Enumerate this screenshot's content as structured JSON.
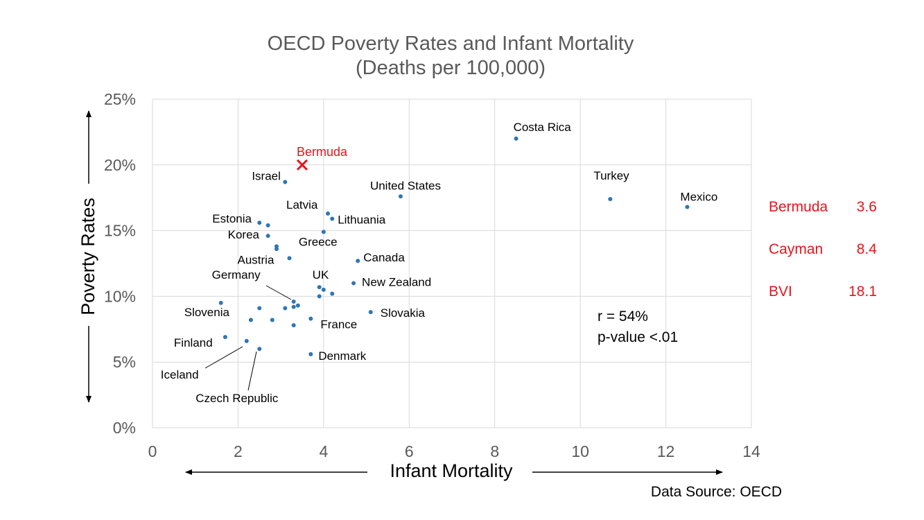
{
  "chart_data": {
    "type": "scatter",
    "title": "OECD Poverty Rates and Infant Mortality",
    "subtitle": "(Deaths per 100,000)",
    "xlabel": "Infant Mortality",
    "ylabel": "Poverty Rates",
    "xlim": [
      0,
      14
    ],
    "ylim": [
      0,
      25
    ],
    "x_ticks": [
      "0",
      "2",
      "4",
      "6",
      "8",
      "10",
      "12",
      "14"
    ],
    "y_ticks": [
      "0%",
      "5%",
      "10%",
      "15%",
      "20%",
      "25%"
    ],
    "grid": true,
    "point_color": "#2E75B6",
    "highlight_color": "#E8141B",
    "points": [
      {
        "label": "Costa Rica",
        "x": 8.5,
        "y": 22.0
      },
      {
        "label": "Turkey",
        "x": 10.7,
        "y": 17.4
      },
      {
        "label": "Mexico",
        "x": 12.5,
        "y": 16.8
      },
      {
        "label": "United States",
        "x": 5.8,
        "y": 17.6
      },
      {
        "label": "Israel",
        "x": 3.1,
        "y": 18.7
      },
      {
        "label": "Latvia",
        "x": 4.1,
        "y": 16.3
      },
      {
        "label": "Lithuania",
        "x": 4.2,
        "y": 15.9
      },
      {
        "label": "Estonia",
        "x": 2.5,
        "y": 15.6
      },
      {
        "label": "",
        "x": 2.7,
        "y": 15.4
      },
      {
        "label": "Korea",
        "x": 2.7,
        "y": 14.6
      },
      {
        "label": "Greece",
        "x": 4.0,
        "y": 14.9
      },
      {
        "label": "",
        "x": 2.9,
        "y": 13.8
      },
      {
        "label": "",
        "x": 2.9,
        "y": 13.6
      },
      {
        "label": "Austria",
        "x": 3.2,
        "y": 12.9
      },
      {
        "label": "Canada",
        "x": 4.8,
        "y": 12.7
      },
      {
        "label": "UK",
        "x": 3.9,
        "y": 10.7
      },
      {
        "label": "",
        "x": 4.0,
        "y": 10.5
      },
      {
        "label": "",
        "x": 4.2,
        "y": 10.2
      },
      {
        "label": "",
        "x": 3.9,
        "y": 10.0
      },
      {
        "label": "New Zealand",
        "x": 4.7,
        "y": 11.0
      },
      {
        "label": "Germany",
        "x": 3.3,
        "y": 9.6
      },
      {
        "label": "",
        "x": 3.4,
        "y": 9.3
      },
      {
        "label": "",
        "x": 3.3,
        "y": 9.2
      },
      {
        "label": "",
        "x": 3.1,
        "y": 9.1
      },
      {
        "label": "",
        "x": 2.5,
        "y": 9.1
      },
      {
        "label": "Slovenia",
        "x": 1.6,
        "y": 9.5
      },
      {
        "label": "Slovakia",
        "x": 5.1,
        "y": 8.8
      },
      {
        "label": "France",
        "x": 3.7,
        "y": 8.3
      },
      {
        "label": "",
        "x": 2.3,
        "y": 8.2
      },
      {
        "label": "",
        "x": 2.8,
        "y": 8.2
      },
      {
        "label": "",
        "x": 3.3,
        "y": 7.8
      },
      {
        "label": "Finland",
        "x": 1.7,
        "y": 6.9
      },
      {
        "label": "Iceland",
        "x": 2.2,
        "y": 6.6
      },
      {
        "label": "Czech Republic",
        "x": 2.5,
        "y": 6.0
      },
      {
        "label": "Denmark",
        "x": 3.7,
        "y": 5.6
      }
    ],
    "highlight": {
      "label": "Bermuda",
      "x": 3.5,
      "y": 20.0
    },
    "annotations": [
      "r = 54%",
      "p-value <.01"
    ],
    "side_table": [
      {
        "name": "Bermuda",
        "value": "3.6"
      },
      {
        "name": "Cayman",
        "value": "8.4"
      },
      {
        "name": "BVI",
        "value": "18.1"
      }
    ],
    "source": "Data Source: OECD"
  }
}
